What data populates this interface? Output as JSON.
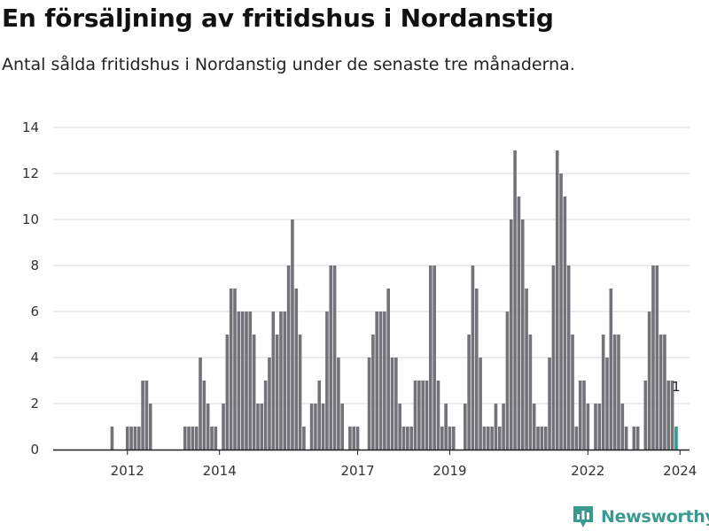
{
  "header": {
    "title": "En försäljning av fritidshus i Nordanstig",
    "subtitle": "Antal sålda fritidshus i Nordanstig under de senaste tre månaderna."
  },
  "brand": {
    "name": "Newsworthy",
    "icon": "bar-chart-logo-icon",
    "color": "#3a9a90"
  },
  "chart_data": {
    "type": "bar",
    "title": "",
    "xlabel": "",
    "ylabel": "",
    "ylim": [
      0,
      14
    ],
    "yticks": [
      0,
      2,
      4,
      6,
      8,
      10,
      12,
      14
    ],
    "grid": true,
    "bar_color": "#737278",
    "highlight_color": "#2a9d8f",
    "start": "2011-01",
    "x_ticks": [
      {
        "label": "2012",
        "date": "2012-01"
      },
      {
        "label": "2014",
        "date": "2014-01"
      },
      {
        "label": "2017",
        "date": "2017-01"
      },
      {
        "label": "2019",
        "date": "2019-01"
      },
      {
        "label": "2022",
        "date": "2022-01"
      },
      {
        "label": "2024",
        "date": "2024-01"
      }
    ],
    "values": [
      0,
      0,
      0,
      0,
      0,
      0,
      0,
      0,
      1,
      0,
      0,
      0,
      1,
      1,
      1,
      1,
      3,
      3,
      2,
      0,
      0,
      0,
      0,
      0,
      0,
      0,
      0,
      1,
      1,
      1,
      1,
      4,
      3,
      2,
      1,
      1,
      0,
      2,
      5,
      7,
      7,
      6,
      6,
      6,
      6,
      5,
      2,
      2,
      3,
      4,
      6,
      5,
      6,
      6,
      8,
      10,
      7,
      5,
      1,
      0,
      2,
      2,
      3,
      2,
      6,
      8,
      8,
      4,
      2,
      0,
      1,
      1,
      1,
      0,
      0,
      4,
      5,
      6,
      6,
      6,
      7,
      4,
      4,
      2,
      1,
      1,
      1,
      3,
      3,
      3,
      3,
      8,
      8,
      3,
      1,
      2,
      1,
      1,
      0,
      0,
      2,
      5,
      8,
      7,
      4,
      1,
      1,
      1,
      2,
      1,
      2,
      6,
      10,
      13,
      11,
      10,
      7,
      5,
      2,
      1,
      1,
      1,
      4,
      8,
      13,
      12,
      11,
      8,
      5,
      1,
      3,
      3,
      2,
      0,
      2,
      2,
      5,
      4,
      7,
      5,
      5,
      2,
      1,
      0,
      1,
      1,
      0,
      3,
      6,
      8,
      8,
      5,
      5,
      3,
      3,
      1
    ],
    "highlight": {
      "index": 155,
      "value": 1,
      "label": "1"
    }
  }
}
